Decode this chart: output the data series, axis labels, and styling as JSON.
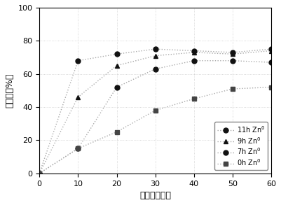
{
  "title": "",
  "xlabel": "时间（分钟）",
  "ylabel": "降解率（%）",
  "xlim": [
    0,
    60
  ],
  "ylim": [
    0,
    100
  ],
  "xticks": [
    0,
    10,
    20,
    30,
    40,
    50,
    60
  ],
  "yticks": [
    0,
    20,
    40,
    60,
    80,
    100
  ],
  "series": [
    {
      "label": "11h Zn$^0$",
      "x": [
        0,
        10,
        20,
        30,
        40,
        50,
        60
      ],
      "y": [
        0,
        68,
        72,
        75,
        74,
        73,
        75
      ],
      "marker": "o",
      "markersize": 5,
      "line_color": "#aaaaaa",
      "marker_color": "#111111",
      "linestyle": ":"
    },
    {
      "label": "9h Zn$^0$",
      "x": [
        0,
        10,
        20,
        30,
        40,
        50,
        60
      ],
      "y": [
        0,
        46,
        65,
        71,
        73,
        72,
        74
      ],
      "marker": "^",
      "markersize": 5,
      "line_color": "#aaaaaa",
      "marker_color": "#111111",
      "linestyle": ":"
    },
    {
      "label": "7h Zn$^0$",
      "x": [
        0,
        10,
        20,
        30,
        40,
        50,
        60
      ],
      "y": [
        0,
        15,
        52,
        63,
        68,
        68,
        67
      ],
      "marker": "o",
      "markersize": 5,
      "line_color": "#aaaaaa",
      "marker_color": "#111111",
      "linestyle": ":"
    },
    {
      "label": "0h Zn$^0$",
      "x": [
        0,
        10,
        20,
        30,
        40,
        50,
        60
      ],
      "y": [
        0,
        15,
        25,
        38,
        45,
        51,
        52
      ],
      "marker": "s",
      "markersize": 5,
      "line_color": "#aaaaaa",
      "marker_color": "#444444",
      "linestyle": ":"
    }
  ],
  "legend_loc": "lower right",
  "grid": true,
  "grid_style": ":",
  "grid_color": "#cccccc",
  "background_color": "#ffffff",
  "font_size": 9,
  "tick_font_size": 8
}
